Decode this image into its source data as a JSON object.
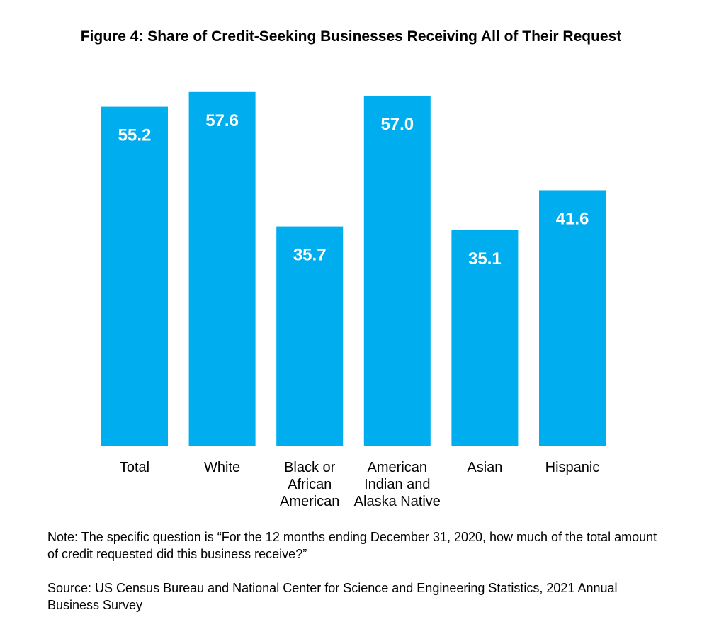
{
  "chart_data": {
    "type": "bar",
    "title": "Figure 4: Share of Credit-Seeking Businesses Receiving All of Their Request",
    "categories": [
      [
        "Total"
      ],
      [
        "White"
      ],
      [
        "Black or",
        "African",
        "American"
      ],
      [
        "American",
        "Indian and",
        "Alaska Native"
      ],
      [
        "Asian"
      ],
      [
        "Hispanic"
      ]
    ],
    "values": [
      55.2,
      57.6,
      35.7,
      57.0,
      35.1,
      41.6
    ],
    "value_labels": [
      "55.2",
      "57.6",
      "35.7",
      "57.0",
      "35.1",
      "41.6"
    ],
    "ylim": [
      0,
      60
    ],
    "bar_color": "#00ADEF",
    "label_color": "#FFFFFF",
    "grid": false,
    "legend": "none"
  },
  "note": "Note: The specific question is “For the 12 months ending December 31, 2020, how much of the total amount of credit requested did this business receive?”",
  "source": "Source: US Census Bureau and National Center for Science and Engineering Statistics, 2021 Annual Business Survey"
}
